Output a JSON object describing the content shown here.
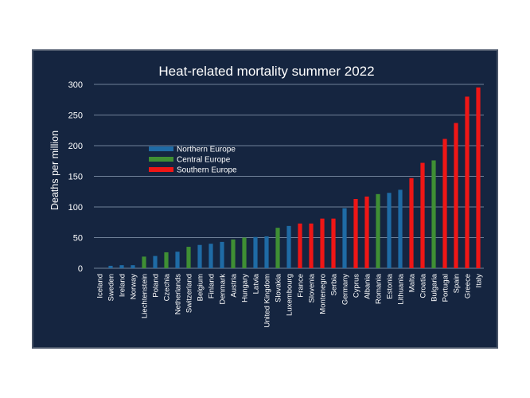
{
  "chart_data": {
    "type": "bar",
    "title": "Heat-related mortality summer 2022",
    "xlabel": "",
    "ylabel": "Deaths per million",
    "ylim": [
      0,
      300
    ],
    "yticks": [
      0,
      50,
      100,
      150,
      200,
      250,
      300
    ],
    "grid": true,
    "legend_position": "upper-left",
    "legend": [
      {
        "name": "Northern Europe",
        "color": "#1f6ba5"
      },
      {
        "name": "Central Europe",
        "color": "#3f8f34"
      },
      {
        "name": "Southern Europe",
        "color": "#ef1616"
      }
    ],
    "categories": [
      "Iceland",
      "Sweden",
      "Ireland",
      "Norway",
      "Liechtenstein",
      "Poland",
      "Czechia",
      "Netherlands",
      "Switzerland",
      "Belgium",
      "Finland",
      "Denmark",
      "Austria",
      "Hungary",
      "Latvia",
      "United Kingdom",
      "Slovakia",
      "Luxembourg",
      "France",
      "Slovenia",
      "Montenegro",
      "Serbia",
      "Germany",
      "Cyprus",
      "Albania",
      "Romania",
      "Estonia",
      "Lithuania",
      "Malta",
      "Croatia",
      "Bulgaria",
      "Portugal",
      "Spain",
      "Greece",
      "Italy"
    ],
    "values": [
      0,
      4,
      5,
      5,
      19,
      20,
      26,
      27,
      35,
      38,
      40,
      43,
      47,
      50,
      51,
      52,
      66,
      69,
      73,
      73,
      81,
      81,
      98,
      113,
      117,
      121,
      123,
      128,
      147,
      172,
      176,
      211,
      237,
      280,
      295
    ],
    "groups": [
      "Northern Europe",
      "Northern Europe",
      "Northern Europe",
      "Northern Europe",
      "Central Europe",
      "Northern Europe",
      "Central Europe",
      "Northern Europe",
      "Central Europe",
      "Northern Europe",
      "Northern Europe",
      "Northern Europe",
      "Central Europe",
      "Central Europe",
      "Northern Europe",
      "Northern Europe",
      "Central Europe",
      "Northern Europe",
      "Southern Europe",
      "Southern Europe",
      "Southern Europe",
      "Southern Europe",
      "Northern Europe",
      "Southern Europe",
      "Southern Europe",
      "Central Europe",
      "Northern Europe",
      "Northern Europe",
      "Southern Europe",
      "Southern Europe",
      "Central Europe",
      "Southern Europe",
      "Southern Europe",
      "Southern Europe",
      "Southern Europe"
    ]
  }
}
